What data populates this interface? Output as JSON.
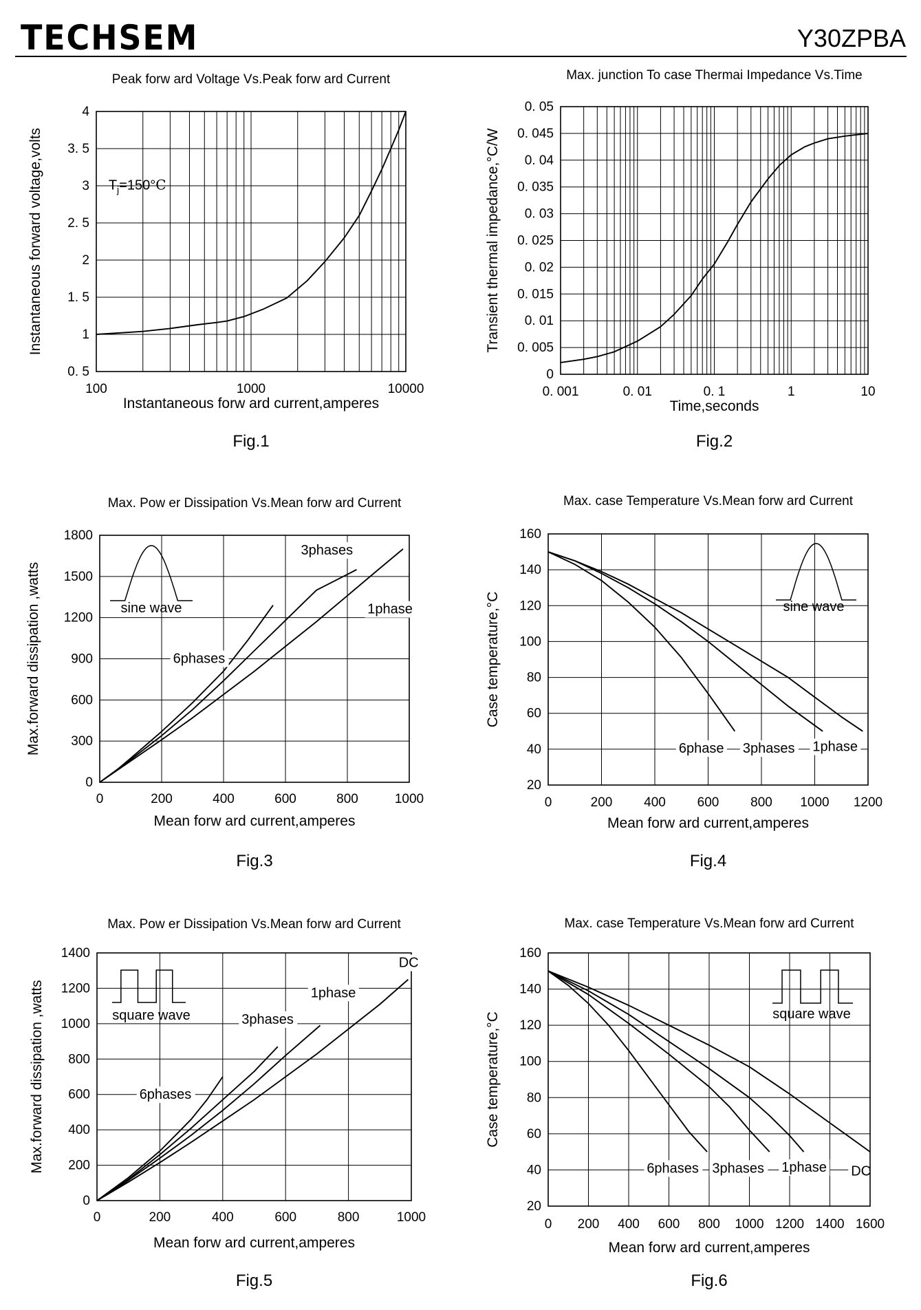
{
  "header": {
    "brand": "TECHSEM",
    "part_number": "Y30ZPBA"
  },
  "chart_data": [
    {
      "id": "fig1",
      "figure_label": "Fig.1",
      "type": "line",
      "title": "Peak forw ard Voltage Vs.Peak forw ard Current",
      "xlabel": "Instantaneous forw ard current,amperes",
      "ylabel": "Instantaneous forward voltage,volts",
      "xscale": "log",
      "xlim": [
        100,
        10000
      ],
      "ylim": [
        0.5,
        4
      ],
      "grid": true,
      "xticks": [
        100,
        1000,
        10000
      ],
      "xtick_labels": [
        "100",
        "1000",
        "10000"
      ],
      "yticks": [
        0.5,
        1,
        1.5,
        2,
        2.5,
        3,
        3.5,
        4
      ],
      "ytick_labels": [
        "0. 5",
        "1",
        "1. 5",
        "2",
        "2. 5",
        "3",
        "3. 5",
        "4"
      ],
      "grid_x": [
        200,
        300,
        400,
        500,
        600,
        700,
        800,
        900,
        1000,
        2000,
        3000,
        4000,
        5000,
        6000,
        7000,
        8000,
        9000
      ],
      "grid_y": [
        1,
        1.5,
        2,
        2.5,
        3,
        3.5
      ],
      "annotations": [
        {
          "text": "Tj=150°C",
          "main": "T",
          "sub": "j",
          "rest": "=150°",
          "unit": "C",
          "x": 120,
          "y": 2.95
        }
      ],
      "series": [
        {
          "x": [
            100,
            200,
            300,
            450,
            600,
            700,
            900,
            1200,
            1700,
            2300,
            3000,
            4000,
            5000,
            6000,
            7000,
            8000,
            9000,
            10000
          ],
          "y": [
            1.0,
            1.04,
            1.08,
            1.13,
            1.16,
            1.18,
            1.24,
            1.34,
            1.49,
            1.72,
            1.98,
            2.3,
            2.6,
            2.93,
            3.22,
            3.5,
            3.75,
            4.0
          ]
        }
      ]
    },
    {
      "id": "fig2",
      "figure_label": "Fig.2",
      "type": "line",
      "title": "Max. junction To case Thermai Impedance Vs.Time",
      "xlabel": "Time,seconds",
      "ylabel": "Transient thermal impedance,°C/W",
      "xscale": "log",
      "xlim": [
        0.001,
        10
      ],
      "ylim": [
        0,
        0.05
      ],
      "grid": true,
      "xticks": [
        0.001,
        0.01,
        0.1,
        1,
        10
      ],
      "xtick_labels": [
        "0. 001",
        "0. 01",
        "0. 1",
        "1",
        "10"
      ],
      "yticks": [
        0,
        0.005,
        0.01,
        0.015,
        0.02,
        0.025,
        0.03,
        0.035,
        0.04,
        0.045,
        0.05
      ],
      "ytick_labels": [
        "0",
        "0. 005",
        "0. 01",
        "0. 015",
        "0. 02",
        "0. 025",
        "0. 03",
        "0. 035",
        "0. 04",
        "0. 045",
        "0. 05"
      ],
      "grid_x": [
        0.002,
        0.003,
        0.004,
        0.005,
        0.006,
        0.007,
        0.008,
        0.009,
        0.01,
        0.02,
        0.03,
        0.04,
        0.05,
        0.06,
        0.07,
        0.08,
        0.09,
        0.1,
        0.2,
        0.3,
        0.4,
        0.5,
        0.6,
        0.7,
        0.8,
        0.9,
        1,
        2,
        3,
        4,
        5,
        6,
        7,
        8,
        9
      ],
      "grid_y": [
        0.005,
        0.01,
        0.015,
        0.02,
        0.025,
        0.03,
        0.035,
        0.04,
        0.045
      ],
      "annotations": [],
      "series": [
        {
          "x": [
            0.001,
            0.002,
            0.003,
            0.005,
            0.01,
            0.02,
            0.03,
            0.05,
            0.07,
            0.1,
            0.15,
            0.2,
            0.3,
            0.5,
            0.7,
            1,
            1.5,
            2,
            3,
            5,
            10
          ],
          "y": [
            0.0022,
            0.0028,
            0.0033,
            0.0042,
            0.0062,
            0.0089,
            0.0112,
            0.0147,
            0.0178,
            0.0206,
            0.0248,
            0.028,
            0.0322,
            0.0365,
            0.039,
            0.041,
            0.0425,
            0.0432,
            0.044,
            0.0445,
            0.045
          ]
        }
      ]
    },
    {
      "id": "fig3",
      "figure_label": "Fig.3",
      "type": "line",
      "title": "Max. Pow er Dissipation Vs.Mean forw ard Current",
      "xlabel": "Mean forw ard current,amperes",
      "ylabel": "Max.forward dissipation ,watts",
      "xscale": "linear",
      "xlim": [
        0,
        1000
      ],
      "ylim": [
        0,
        1800
      ],
      "grid": true,
      "xticks": [
        0,
        200,
        400,
        600,
        800,
        1000
      ],
      "xtick_labels": [
        "0",
        "200",
        "400",
        "600",
        "800",
        "1000"
      ],
      "yticks": [
        0,
        300,
        600,
        900,
        1200,
        1500,
        1800
      ],
      "ytick_labels": [
        "0",
        "300",
        "600",
        "900",
        "1200",
        "1500",
        "1800"
      ],
      "grid_x": [
        200,
        400,
        600,
        800
      ],
      "grid_y": [
        300,
        600,
        900,
        1200,
        1500
      ],
      "waveform": {
        "kind": "sine",
        "label": "sine wave"
      },
      "annotations": [
        {
          "text": "3phases",
          "x": 650,
          "y": 1660
        },
        {
          "text": "1phase",
          "x": 865,
          "y": 1230
        },
        {
          "text": "6phases",
          "x": 237,
          "y": 870
        }
      ],
      "series": [
        {
          "name": "6phases",
          "x": [
            0,
            50,
            100,
            200,
            300,
            400,
            480,
            560
          ],
          "y": [
            0,
            80,
            175,
            370,
            580,
            810,
            1040,
            1290
          ]
        },
        {
          "name": "3phases",
          "x": [
            0,
            100,
            200,
            300,
            400,
            500,
            600,
            700,
            830
          ],
          "y": [
            0,
            165,
            340,
            530,
            740,
            960,
            1180,
            1400,
            1550
          ]
        },
        {
          "name": "1phase",
          "x": [
            0,
            100,
            200,
            300,
            400,
            500,
            600,
            700,
            800,
            900,
            980
          ],
          "y": [
            0,
            155,
            310,
            470,
            640,
            810,
            990,
            1170,
            1360,
            1550,
            1700
          ]
        }
      ]
    },
    {
      "id": "fig4",
      "figure_label": "Fig.4",
      "type": "line",
      "title": "Max. case  Temperature Vs.Mean forw ard Current",
      "xlabel": "Mean forw ard current,amperes",
      "ylabel": "Case  temperature,°C",
      "xscale": "linear",
      "xlim": [
        0,
        1200
      ],
      "ylim": [
        20,
        160
      ],
      "grid": true,
      "xticks": [
        0,
        200,
        400,
        600,
        800,
        1000,
        1200
      ],
      "xtick_labels": [
        "0",
        "200",
        "400",
        "600",
        "800",
        "1000",
        "1200"
      ],
      "yticks": [
        20,
        40,
        60,
        80,
        100,
        120,
        140,
        160
      ],
      "ytick_labels": [
        "20",
        "40",
        "60",
        "80",
        "100",
        "120",
        "140",
        "160"
      ],
      "grid_x": [
        200,
        400,
        600,
        800,
        1000
      ],
      "grid_y": [
        40,
        60,
        80,
        100,
        120,
        140
      ],
      "waveform": {
        "kind": "sine",
        "label": "sine wave"
      },
      "annotations": [
        {
          "text": "6phase",
          "x": 490,
          "y": 38
        },
        {
          "text": "3phases",
          "x": 730,
          "y": 38
        },
        {
          "text": "1phase",
          "x": 992,
          "y": 39
        }
      ],
      "series": [
        {
          "name": "6phase",
          "x": [
            0,
            100,
            200,
            300,
            400,
            500,
            600,
            700
          ],
          "y": [
            150,
            143,
            134,
            122,
            108,
            91,
            71,
            50
          ]
        },
        {
          "name": "3phases",
          "x": [
            0,
            100,
            200,
            300,
            400,
            500,
            600,
            700,
            800,
            900,
            1030
          ],
          "y": [
            150,
            145,
            138,
            130,
            121,
            111,
            100,
            88,
            76,
            64,
            50
          ]
        },
        {
          "name": "1phase",
          "x": [
            0,
            100,
            200,
            300,
            400,
            500,
            600,
            700,
            800,
            900,
            1000,
            1100,
            1180
          ],
          "y": [
            150,
            145,
            139,
            132,
            124,
            116,
            107,
            98,
            89,
            80,
            69,
            58,
            50
          ]
        }
      ]
    },
    {
      "id": "fig5",
      "figure_label": "Fig.5",
      "type": "line",
      "title": "Max. Pow er Dissipation Vs.Mean forw ard Current",
      "xlabel": "Mean forw ard current,amperes",
      "ylabel": "Max.forward dissipation ,watts",
      "xscale": "linear",
      "xlim": [
        0,
        1000
      ],
      "ylim": [
        0,
        1400
      ],
      "grid": true,
      "xticks": [
        0,
        200,
        400,
        600,
        800,
        1000
      ],
      "xtick_labels": [
        "0",
        "200",
        "400",
        "600",
        "800",
        "1000"
      ],
      "yticks": [
        0,
        200,
        400,
        600,
        800,
        1000,
        1200,
        1400
      ],
      "ytick_labels": [
        "0",
        "200",
        "400",
        "600",
        "800",
        "1000",
        "1200",
        "1400"
      ],
      "grid_x": [
        200,
        400,
        600,
        800
      ],
      "grid_y": [
        200,
        400,
        600,
        800,
        1000,
        1200
      ],
      "waveform": {
        "kind": "square",
        "label": "square wave"
      },
      "annotations": [
        {
          "text": "DC",
          "x": 960,
          "y": 1320,
          "serif": true
        },
        {
          "text": "1phase",
          "x": 680,
          "y": 1150
        },
        {
          "text": "3phases",
          "x": 460,
          "y": 1000
        },
        {
          "text": "6phases",
          "x": 135,
          "y": 575
        }
      ],
      "series": [
        {
          "name": "6phases",
          "x": [
            0,
            100,
            200,
            250,
            300,
            350,
            400
          ],
          "y": [
            0,
            130,
            280,
            370,
            460,
            570,
            700
          ]
        },
        {
          "name": "3phases",
          "x": [
            0,
            100,
            200,
            300,
            400,
            500,
            575
          ],
          "y": [
            0,
            120,
            260,
            410,
            570,
            730,
            870
          ]
        },
        {
          "name": "1phase",
          "x": [
            0,
            100,
            200,
            300,
            400,
            500,
            600,
            710
          ],
          "y": [
            0,
            115,
            240,
            370,
            510,
            660,
            820,
            990
          ]
        },
        {
          "name": "DC",
          "x": [
            0,
            100,
            200,
            300,
            400,
            500,
            600,
            700,
            800,
            900,
            990
          ],
          "y": [
            0,
            105,
            215,
            330,
            450,
            570,
            700,
            830,
            970,
            1110,
            1250
          ]
        }
      ]
    },
    {
      "id": "fig6",
      "figure_label": "Fig.6",
      "type": "line",
      "title": "Max. case Temperature Vs.Mean forw ard Current",
      "xlabel": "Mean forw ard current,amperes",
      "ylabel": "Case  temperature,°C",
      "xscale": "linear",
      "xlim": [
        0,
        1600
      ],
      "ylim": [
        20,
        160
      ],
      "grid": true,
      "xticks": [
        0,
        200,
        400,
        600,
        800,
        1000,
        1200,
        1400,
        1600
      ],
      "xtick_labels": [
        "0",
        "200",
        "400",
        "600",
        "800",
        "1000",
        "1200",
        "1400",
        "1600"
      ],
      "yticks": [
        20,
        40,
        60,
        80,
        100,
        120,
        140,
        160
      ],
      "ytick_labels": [
        "20",
        "40",
        "60",
        "80",
        "100",
        "120",
        "140",
        "160"
      ],
      "grid_x": [
        200,
        400,
        600,
        800,
        1000,
        1200,
        1400
      ],
      "grid_y": [
        40,
        60,
        80,
        100,
        120,
        140
      ],
      "waveform": {
        "kind": "square",
        "label": "square wave"
      },
      "annotations": [
        {
          "text": "6phases",
          "x": 490,
          "y": 38.5
        },
        {
          "text": "3phases",
          "x": 815,
          "y": 38.5
        },
        {
          "text": "1phase",
          "x": 1160,
          "y": 39
        },
        {
          "text": "DC",
          "x": 1505,
          "y": 37,
          "serif": true
        }
      ],
      "series": [
        {
          "name": "6phases",
          "x": [
            0,
            100,
            200,
            300,
            400,
            500,
            600,
            700,
            790
          ],
          "y": [
            150,
            142,
            132,
            120,
            106,
            91,
            76,
            61,
            50
          ]
        },
        {
          "name": "3phases",
          "x": [
            0,
            200,
            400,
            600,
            800,
            900,
            1000,
            1100
          ],
          "y": [
            150,
            137,
            121,
            104,
            86,
            75,
            62,
            50
          ]
        },
        {
          "name": "1phase",
          "x": [
            0,
            200,
            400,
            600,
            800,
            1000,
            1100,
            1200,
            1270
          ],
          "y": [
            150,
            139,
            126,
            111,
            96,
            80,
            70,
            59,
            50
          ]
        },
        {
          "name": "DC",
          "x": [
            0,
            200,
            400,
            600,
            800,
            1000,
            1200,
            1400,
            1600
          ],
          "y": [
            150,
            141,
            131,
            120,
            109,
            97,
            82,
            66,
            50
          ]
        }
      ]
    }
  ]
}
